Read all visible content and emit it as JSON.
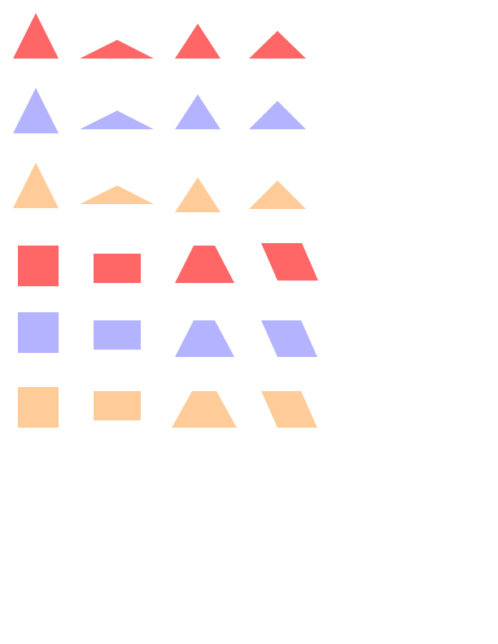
{
  "palette": {
    "red": "#ff6666",
    "blue": "#b3b3ff",
    "orange": "#ffcc99",
    "background": "#ffffff"
  },
  "rows": [
    {
      "name": "red-triangles",
      "color": "red",
      "shapes": [
        "equilateral-triangle",
        "obtuse-triangle",
        "isosceles-triangle",
        "obtuse-triangle"
      ]
    },
    {
      "name": "blue-triangles",
      "color": "blue",
      "shapes": [
        "equilateral-triangle",
        "obtuse-triangle",
        "isosceles-triangle",
        "obtuse-triangle"
      ]
    },
    {
      "name": "orange-triangles",
      "color": "orange",
      "shapes": [
        "equilateral-triangle",
        "obtuse-triangle",
        "isosceles-triangle",
        "obtuse-triangle"
      ]
    },
    {
      "name": "red-quadrilaterals",
      "color": "red",
      "shapes": [
        "square",
        "rectangle",
        "trapezoid",
        "parallelogram"
      ]
    },
    {
      "name": "blue-quadrilaterals",
      "color": "blue",
      "shapes": [
        "square",
        "rectangle",
        "trapezoid",
        "parallelogram"
      ]
    },
    {
      "name": "orange-quadrilaterals",
      "color": "orange",
      "shapes": [
        "square",
        "rectangle",
        "trapezoid",
        "parallelogram"
      ]
    }
  ]
}
